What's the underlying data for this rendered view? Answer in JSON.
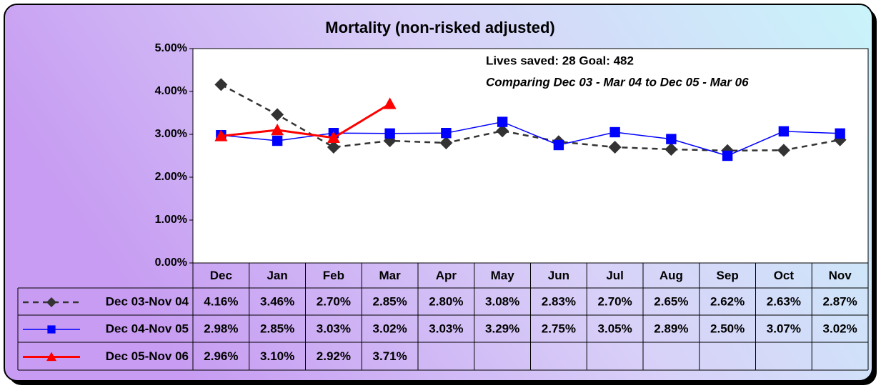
{
  "chart_data": {
    "type": "line",
    "title": "Mortality (non-risked adjusted)",
    "annotations": [
      "Lives saved: 28   Goal: 482",
      "Comparing Dec 03 - Mar 04 to Dec 05 - Mar 06"
    ],
    "categories": [
      "Dec",
      "Jan",
      "Feb",
      "Mar",
      "Apr",
      "May",
      "Jun",
      "Jul",
      "Aug",
      "Sep",
      "Oct",
      "Nov"
    ],
    "ylim": [
      0,
      5
    ],
    "yticks": [
      {
        "value": 0,
        "label": "0.00%"
      },
      {
        "value": 1,
        "label": "1.00%"
      },
      {
        "value": 2,
        "label": "2.00%"
      },
      {
        "value": 3,
        "label": "3.00%"
      },
      {
        "value": 4,
        "label": "4.00%"
      },
      {
        "value": 5,
        "label": "5.00%"
      }
    ],
    "series": [
      {
        "name": "Dec 03-Nov 04",
        "color": "#333333",
        "marker": "diamond",
        "line_style": "dashed",
        "values": [
          4.16,
          3.46,
          2.7,
          2.85,
          2.8,
          3.08,
          2.83,
          2.7,
          2.65,
          2.62,
          2.63,
          2.87
        ],
        "value_labels": [
          "4.16%",
          "3.46%",
          "2.70%",
          "2.85%",
          "2.80%",
          "3.08%",
          "2.83%",
          "2.70%",
          "2.65%",
          "2.62%",
          "2.63%",
          "2.87%"
        ]
      },
      {
        "name": "Dec 04-Nov 05",
        "color": "#0000ff",
        "marker": "square",
        "line_style": "solid",
        "values": [
          2.98,
          2.85,
          3.03,
          3.02,
          3.03,
          3.29,
          2.75,
          3.05,
          2.89,
          2.5,
          3.07,
          3.02
        ],
        "value_labels": [
          "2.98%",
          "2.85%",
          "3.03%",
          "3.02%",
          "3.03%",
          "3.29%",
          "2.75%",
          "3.05%",
          "2.89%",
          "2.50%",
          "3.07%",
          "3.02%"
        ]
      },
      {
        "name": "Dec 05-Nov 06",
        "color": "#ff0000",
        "marker": "triangle",
        "line_style": "solid",
        "values": [
          2.96,
          3.1,
          2.92,
          3.71,
          null,
          null,
          null,
          null,
          null,
          null,
          null,
          null
        ],
        "value_labels": [
          "2.96%",
          "3.10%",
          "2.92%",
          "3.71%",
          null,
          null,
          null,
          null,
          null,
          null,
          null,
          null
        ]
      }
    ]
  }
}
